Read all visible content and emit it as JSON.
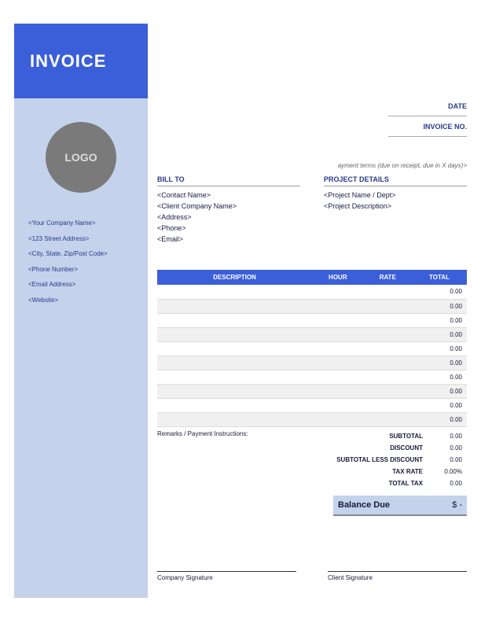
{
  "header": {
    "title": "INVOICE",
    "logo_text": "LOGO"
  },
  "company": {
    "name": "<Your Company Name>",
    "address": "<123 Street Address>",
    "city": "<City, State, Zip/Post Code>",
    "phone": "<Phone Number>",
    "email": "<Email Address>",
    "website": "<Website>"
  },
  "meta": {
    "date_label": "DATE",
    "invoice_no_label": "INVOICE NO."
  },
  "terms": "ayment terms (due on receipt, due in X days)>",
  "bill_to": {
    "title": "BILL TO",
    "contact": "<Contact Name>",
    "company": "<Client Company Name>",
    "address": "<Address>",
    "phone": "<Phone>",
    "email": "<Email>"
  },
  "project": {
    "title": "PROJECT DETAILS",
    "name": "<Project Name / Dept>",
    "description": "<Project Description>"
  },
  "table": {
    "headers": {
      "desc": "DESCRIPTION",
      "hour": "HOUR",
      "rate": "RATE",
      "total": "TOTAL"
    },
    "rows": [
      {
        "total": "0.00"
      },
      {
        "total": "0.00"
      },
      {
        "total": "0.00"
      },
      {
        "total": "0.00"
      },
      {
        "total": "0.00"
      },
      {
        "total": "0.00"
      },
      {
        "total": "0.00"
      },
      {
        "total": "0.00"
      },
      {
        "total": "0.00"
      },
      {
        "total": "0.00"
      }
    ]
  },
  "remarks_label": "Remarks / Payment Instructions:",
  "totals": {
    "subtotal": {
      "label": "SUBTOTAL",
      "value": "0.00"
    },
    "discount": {
      "label": "DISCOUNT",
      "value": "0.00"
    },
    "subtotal_less": {
      "label": "SUBTOTAL LESS DISCOUNT",
      "value": "0.00"
    },
    "tax_rate": {
      "label": "TAX RATE",
      "value": "0.00%"
    },
    "total_tax": {
      "label": "TOTAL TAX",
      "value": "0.00"
    }
  },
  "balance": {
    "label": "Balance Due",
    "value": "$   -"
  },
  "signatures": {
    "company": "Company Signature",
    "client": "Client Signature"
  },
  "colors": {
    "primary": "#3a5fd9",
    "sidebar": "#c4d2ec",
    "logo_bg": "#7a7a7a",
    "text_dark": "#1a1a3a",
    "text_blue": "#2a3a8a"
  }
}
